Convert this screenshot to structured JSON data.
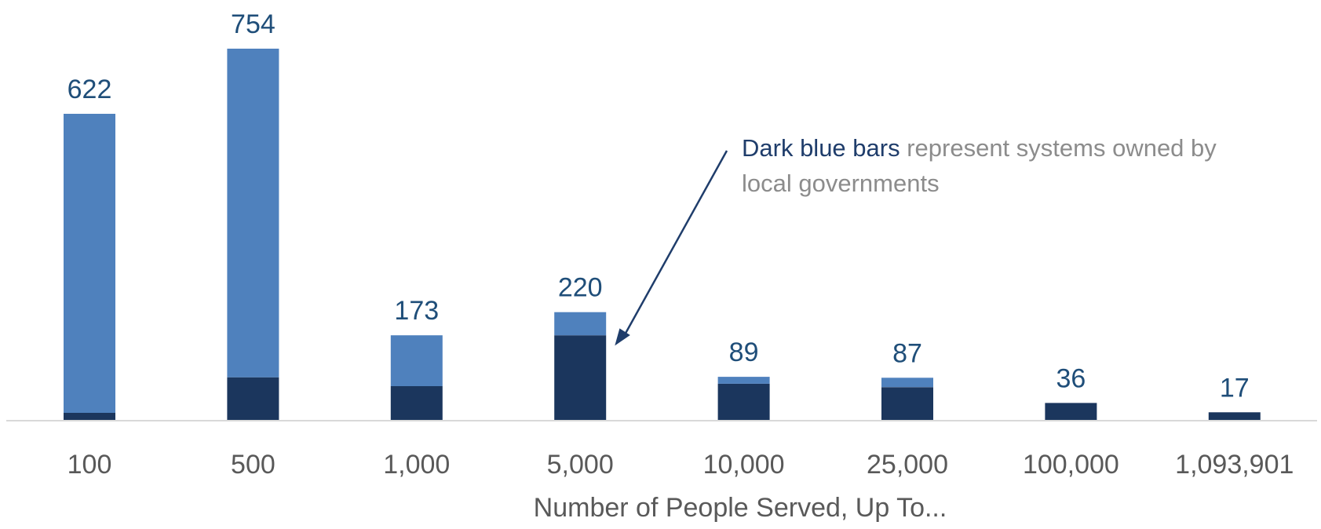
{
  "chart_data": {
    "type": "bar",
    "stacked": true,
    "categories": [
      "100",
      "500",
      "1,000",
      "5,000",
      "10,000",
      "25,000",
      "100,000",
      "1,093,901"
    ],
    "totals": [
      622,
      754,
      173,
      220,
      89,
      87,
      36,
      17
    ],
    "series": [
      {
        "values": [
          16,
          88,
          70,
          173,
          75,
          68,
          36,
          17
        ],
        "color": "#1b365d"
      },
      {
        "values": [
          606,
          666,
          103,
          47,
          14,
          19,
          0,
          0
        ],
        "color": "#4f81bd"
      }
    ],
    "total_label_color": "#1f4e79",
    "xlabel": "Number of People Served, Up To...",
    "ylabel": "",
    "ylim": [
      0,
      754
    ],
    "grid": false,
    "legend": "none",
    "annotation": {
      "highlight": "Dark blue bars",
      "rest": " represent systems owned by local governments",
      "arrow_points_to": "5,000"
    }
  }
}
